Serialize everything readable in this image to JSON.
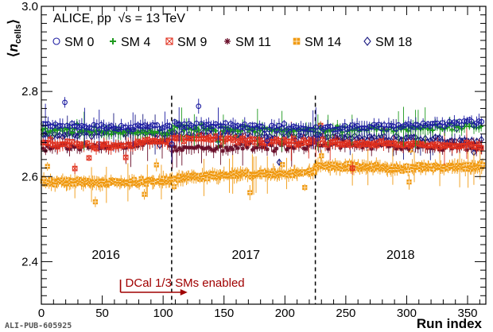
{
  "chart_data": {
    "type": "scatter",
    "title": "",
    "experiment_label": "ALICE, pp",
    "energy_label": "√s = 13 TeV",
    "xlabel": "Run index",
    "ylabel": "⟨n_cells⟩",
    "xlim": [
      0,
      365
    ],
    "ylim": [
      2.3,
      3.0
    ],
    "x_ticks": [
      "0",
      "50",
      "100",
      "150",
      "200",
      "250",
      "300",
      "350"
    ],
    "x_tick_values": [
      0,
      50,
      100,
      150,
      200,
      250,
      300,
      350
    ],
    "y_ticks": [
      "2.4",
      "2.6",
      "2.8",
      "3.0"
    ],
    "y_tick_values": [
      2.4,
      2.6,
      2.8,
      3.0
    ],
    "grid": false,
    "legend_position": "top-left",
    "year_boundaries": [
      107,
      225
    ],
    "year_labels": [
      {
        "label": "2016",
        "x": 53,
        "y": 2.3
      },
      {
        "label": "2017",
        "x": 168,
        "y": 2.3
      },
      {
        "label": "2018",
        "x": 295,
        "y": 2.3
      }
    ],
    "dcal_annotation": {
      "label": "DCal 1/3 SMs enabled",
      "x_start": 65,
      "x_end": 120,
      "y": 2.335
    },
    "series": [
      {
        "name": "SM 0",
        "color": "#1a1aa0",
        "marker": "circle",
        "segments": [
          [
            2.722,
            2.715,
            2.718
          ],
          [
            2.722,
            2.712,
            2.73
          ]
        ]
      },
      {
        "name": "SM 4",
        "color": "#1f9a1f",
        "marker": "plus",
        "segments": [
          [
            2.71,
            2.705,
            2.702
          ],
          [
            2.715,
            2.708,
            2.72
          ]
        ]
      },
      {
        "name": "SM 9",
        "color": "#e0301e",
        "marker": "cross-square",
        "segments": [
          [
            2.678,
            2.672,
            2.685
          ],
          [
            2.692,
            2.68,
            2.672
          ]
        ]
      },
      {
        "name": "SM 11",
        "color": "#6a0f2a",
        "marker": "star",
        "segments": [
          [
            2.67,
            2.668,
            2.682
          ],
          [
            2.665,
            2.675,
            2.668
          ]
        ]
      },
      {
        "name": "SM 14",
        "color": "#f09a12",
        "marker": "dotted-square",
        "segments": [
          [
            2.59,
            2.585,
            2.59
          ],
          [
            2.595,
            2.605,
            2.61
          ],
          [
            2.625,
            2.62,
            2.625
          ]
        ]
      },
      {
        "name": "SM 18",
        "color": "#1a1a80",
        "marker": "diamond",
        "segments": [
          [
            2.695,
            2.705,
            2.702
          ],
          [
            2.702,
            2.7,
            2.695
          ],
          [
            2.692,
            2.69,
            2.678
          ]
        ]
      }
    ]
  },
  "footer": {
    "id": "ALI-PUB-605925"
  }
}
